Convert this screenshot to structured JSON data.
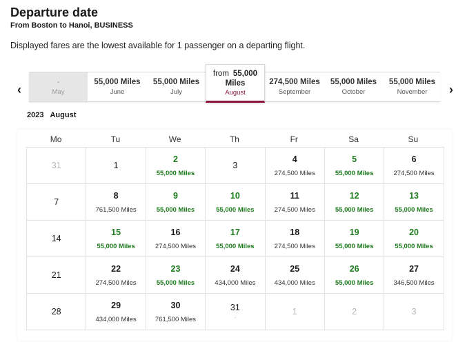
{
  "header": {
    "title": "Departure date",
    "route": "From Boston to Hanoi, BUSINESS",
    "notice": "Displayed fares are the lowest available for 1 passenger on a departing flight."
  },
  "month_strip": {
    "prev_icon": "chevron-left-icon",
    "next_icon": "chevron-right-icon",
    "tabs": [
      {
        "price": "-",
        "month": "May",
        "state": "disabled"
      },
      {
        "price": "55,000 Miles",
        "month": "June",
        "state": "normal"
      },
      {
        "price": "55,000 Miles",
        "month": "July",
        "state": "normal"
      },
      {
        "prefix": "from",
        "price": "55,000",
        "unit": "Miles",
        "month": "August",
        "state": "selected"
      },
      {
        "price": "274,500 Miles",
        "month": "September",
        "state": "normal"
      },
      {
        "price": "55,000 Miles",
        "month": "October",
        "state": "normal"
      },
      {
        "price": "55,000 Miles",
        "month": "November",
        "state": "normal"
      }
    ]
  },
  "calendar": {
    "year": "2023",
    "month": "August",
    "weekdays": [
      "Mo",
      "Tu",
      "We",
      "Th",
      "Fr",
      "Sa",
      "Su"
    ],
    "accent_low": "#1e7b1e",
    "accent_brand": "#8a1538",
    "days": [
      {
        "day": "31",
        "fare": "",
        "kind": "dim"
      },
      {
        "day": "1",
        "fare": "",
        "kind": "nofare"
      },
      {
        "day": "2",
        "fare": "55,000 Miles",
        "kind": "low"
      },
      {
        "day": "3",
        "fare": "",
        "kind": "nofare"
      },
      {
        "day": "4",
        "fare": "274,500 Miles",
        "kind": "priced"
      },
      {
        "day": "5",
        "fare": "55,000 Miles",
        "kind": "low"
      },
      {
        "day": "6",
        "fare": "274,500 Miles",
        "kind": "priced"
      },
      {
        "day": "7",
        "fare": "",
        "kind": "nofare"
      },
      {
        "day": "8",
        "fare": "761,500 Miles",
        "kind": "priced"
      },
      {
        "day": "9",
        "fare": "55,000 Miles",
        "kind": "low"
      },
      {
        "day": "10",
        "fare": "55,000 Miles",
        "kind": "low"
      },
      {
        "day": "11",
        "fare": "274,500 Miles",
        "kind": "priced"
      },
      {
        "day": "12",
        "fare": "55,000 Miles",
        "kind": "low"
      },
      {
        "day": "13",
        "fare": "55,000 Miles",
        "kind": "low"
      },
      {
        "day": "14",
        "fare": "",
        "kind": "nofare"
      },
      {
        "day": "15",
        "fare": "55,000 Miles",
        "kind": "low"
      },
      {
        "day": "16",
        "fare": "274,500 Miles",
        "kind": "priced"
      },
      {
        "day": "17",
        "fare": "55,000 Miles",
        "kind": "low"
      },
      {
        "day": "18",
        "fare": "274,500 Miles",
        "kind": "priced"
      },
      {
        "day": "19",
        "fare": "55,000 Miles",
        "kind": "low"
      },
      {
        "day": "20",
        "fare": "55,000 Miles",
        "kind": "low"
      },
      {
        "day": "21",
        "fare": "",
        "kind": "nofare"
      },
      {
        "day": "22",
        "fare": "274,500 Miles",
        "kind": "priced"
      },
      {
        "day": "23",
        "fare": "55,000 Miles",
        "kind": "low"
      },
      {
        "day": "24",
        "fare": "434,000 Miles",
        "kind": "priced"
      },
      {
        "day": "25",
        "fare": "434,000 Miles",
        "kind": "priced"
      },
      {
        "day": "26",
        "fare": "55,000 Miles",
        "kind": "low"
      },
      {
        "day": "27",
        "fare": "346,500 Miles",
        "kind": "priced"
      },
      {
        "day": "28",
        "fare": "",
        "kind": "nofare"
      },
      {
        "day": "29",
        "fare": "434,000 Miles",
        "kind": "priced"
      },
      {
        "day": "30",
        "fare": "761,500 Miles",
        "kind": "priced"
      },
      {
        "day": "31",
        "fare": "-",
        "kind": "dash"
      },
      {
        "day": "1",
        "fare": "",
        "kind": "dim"
      },
      {
        "day": "2",
        "fare": "",
        "kind": "dim"
      },
      {
        "day": "3",
        "fare": "",
        "kind": "dim"
      }
    ]
  }
}
